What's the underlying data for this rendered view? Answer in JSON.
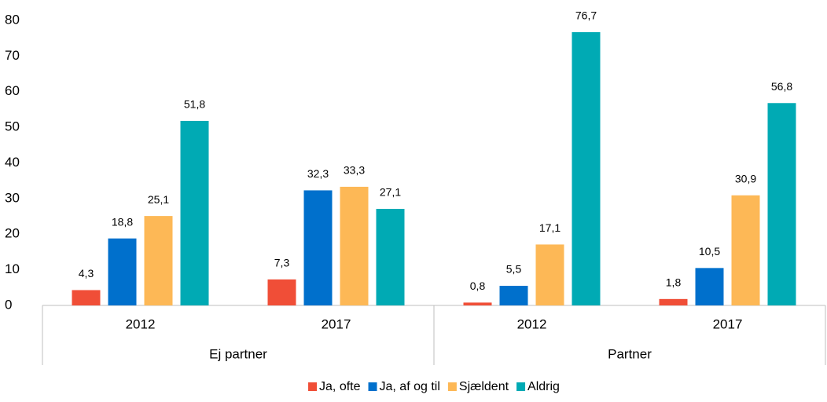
{
  "chart_data": {
    "type": "bar",
    "categories": [
      "2012",
      "2017",
      "2012",
      "2017"
    ],
    "groups": [
      "Ej partner",
      "Partner"
    ],
    "series": [
      {
        "name": "Ja, ofte",
        "color": "#f04e37",
        "values": [
          4.3,
          7.3,
          0.8,
          1.8
        ],
        "value_labels": [
          "4,3",
          "7,3",
          "0,8",
          "1,8"
        ]
      },
      {
        "name": "Ja, af og til",
        "color": "#0070cc",
        "values": [
          18.8,
          32.3,
          5.5,
          10.5
        ],
        "value_labels": [
          "18,8",
          "32,3",
          "5,5",
          "10,5"
        ]
      },
      {
        "name": "Sjældent",
        "color": "#fdb856",
        "values": [
          25.1,
          33.3,
          17.1,
          30.9
        ],
        "value_labels": [
          "25,1",
          "33,3",
          "17,1",
          "30,9"
        ]
      },
      {
        "name": "Aldrig",
        "color": "#00aab4",
        "values": [
          51.8,
          27.1,
          76.7,
          56.8
        ],
        "value_labels": [
          "51,8",
          "27,1",
          "76,7",
          "56,8"
        ]
      }
    ],
    "ylim": [
      0,
      80
    ],
    "yticks": [
      0,
      10,
      20,
      30,
      40,
      50,
      60,
      70,
      80
    ],
    "grid": false,
    "legend": "bottom"
  }
}
